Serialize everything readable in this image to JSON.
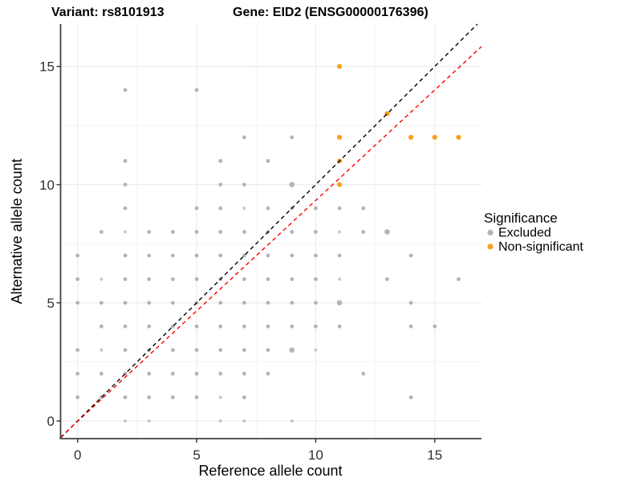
{
  "header": {
    "variant_title": "Variant: rs8101913",
    "gene_title": "Gene: EID2 (ENSG00000176396)"
  },
  "legend": {
    "title": "Significance",
    "items": [
      {
        "label": "Excluded",
        "color": "#b4b4b4"
      },
      {
        "label": "Non-significant",
        "color": "#f8a01d"
      }
    ]
  },
  "chart_data": {
    "type": "scatter",
    "title": "Variant: rs8101913   Gene: EID2 (ENSG00000176396)",
    "xlabel": "Reference allele count",
    "ylabel": "Alternative allele count",
    "x_ticks": [
      0,
      5,
      10,
      15
    ],
    "y_ticks": [
      0,
      5,
      10,
      15
    ],
    "x_minor_ticks": [
      2.5,
      7.5,
      12.5
    ],
    "y_minor_ticks": [
      2.5,
      7.5,
      12.5
    ],
    "xlim": [
      -0.71,
      16.96
    ],
    "ylim": [
      -0.75,
      16.79
    ],
    "grid": true,
    "legend_position": "right",
    "series": [
      {
        "name": "Excluded",
        "color": "#b4b4b4",
        "base_radius": 2.4,
        "points": [
          [
            2,
            0,
            1
          ],
          [
            3,
            0,
            1
          ],
          [
            6,
            0,
            1
          ],
          [
            7,
            0,
            1
          ],
          [
            9,
            0,
            1
          ],
          [
            0,
            1,
            2
          ],
          [
            1,
            1,
            2
          ],
          [
            2,
            1,
            2
          ],
          [
            3,
            1,
            2
          ],
          [
            4,
            1,
            2
          ],
          [
            5,
            1,
            2
          ],
          [
            6,
            1,
            1
          ],
          [
            7,
            1,
            2
          ],
          [
            14,
            1,
            2
          ],
          [
            0,
            2,
            2
          ],
          [
            1,
            2,
            2
          ],
          [
            2,
            2,
            2
          ],
          [
            3,
            2,
            2
          ],
          [
            4,
            2,
            2
          ],
          [
            5,
            2,
            2
          ],
          [
            6,
            2,
            2
          ],
          [
            7,
            2,
            2
          ],
          [
            8,
            2,
            2
          ],
          [
            12,
            2,
            2
          ],
          [
            0,
            3,
            2
          ],
          [
            1,
            3,
            1
          ],
          [
            2,
            3,
            2
          ],
          [
            3,
            3,
            2
          ],
          [
            4,
            3,
            2
          ],
          [
            5,
            3,
            2
          ],
          [
            6,
            3,
            2
          ],
          [
            7,
            3,
            2
          ],
          [
            8,
            3,
            2
          ],
          [
            9,
            3,
            3
          ],
          [
            10,
            3,
            1
          ],
          [
            1,
            4,
            2
          ],
          [
            2,
            4,
            2
          ],
          [
            3,
            4,
            2
          ],
          [
            4,
            4,
            2
          ],
          [
            5,
            4,
            2
          ],
          [
            6,
            4,
            2
          ],
          [
            7,
            4,
            2
          ],
          [
            8,
            4,
            2
          ],
          [
            9,
            4,
            2
          ],
          [
            10,
            4,
            2
          ],
          [
            11,
            4,
            2
          ],
          [
            14,
            4,
            2
          ],
          [
            15,
            4,
            2
          ],
          [
            0,
            5,
            2
          ],
          [
            1,
            5,
            2
          ],
          [
            2,
            5,
            2
          ],
          [
            3,
            5,
            2
          ],
          [
            4,
            5,
            2
          ],
          [
            5,
            5,
            2
          ],
          [
            6,
            5,
            2
          ],
          [
            7,
            5,
            2
          ],
          [
            8,
            5,
            2
          ],
          [
            9,
            5,
            2
          ],
          [
            10,
            5,
            2
          ],
          [
            11,
            5,
            3
          ],
          [
            14,
            5,
            2
          ],
          [
            0,
            6,
            2
          ],
          [
            1,
            6,
            1
          ],
          [
            2,
            6,
            2
          ],
          [
            3,
            6,
            2
          ],
          [
            4,
            6,
            2
          ],
          [
            5,
            6,
            2
          ],
          [
            6,
            6,
            2
          ],
          [
            7,
            6,
            2
          ],
          [
            8,
            6,
            2
          ],
          [
            9,
            6,
            2
          ],
          [
            10,
            6,
            2
          ],
          [
            11,
            6,
            1
          ],
          [
            13,
            6,
            2
          ],
          [
            16,
            6,
            2
          ],
          [
            0,
            7,
            2
          ],
          [
            2,
            7,
            2
          ],
          [
            3,
            7,
            2
          ],
          [
            4,
            7,
            2
          ],
          [
            5,
            7,
            2
          ],
          [
            6,
            7,
            2
          ],
          [
            7,
            7,
            2
          ],
          [
            8,
            7,
            2
          ],
          [
            9,
            7,
            2
          ],
          [
            10,
            7,
            2
          ],
          [
            11,
            7,
            2
          ],
          [
            14,
            7,
            2
          ],
          [
            1,
            8,
            2
          ],
          [
            2,
            8,
            1
          ],
          [
            3,
            8,
            2
          ],
          [
            4,
            8,
            2
          ],
          [
            5,
            8,
            2
          ],
          [
            6,
            8,
            2
          ],
          [
            7,
            8,
            2
          ],
          [
            8,
            8,
            2
          ],
          [
            9,
            8,
            2
          ],
          [
            10,
            8,
            2
          ],
          [
            11,
            8,
            1
          ],
          [
            12,
            8,
            2
          ],
          [
            13,
            8,
            3
          ],
          [
            2,
            9,
            2
          ],
          [
            5,
            9,
            2
          ],
          [
            6,
            9,
            2
          ],
          [
            7,
            9,
            1
          ],
          [
            8,
            9,
            2
          ],
          [
            9,
            9,
            2
          ],
          [
            10,
            9,
            2
          ],
          [
            11,
            9,
            2
          ],
          [
            12,
            9,
            2
          ],
          [
            2,
            10,
            2
          ],
          [
            6,
            10,
            2
          ],
          [
            7,
            10,
            2
          ],
          [
            9,
            10,
            3
          ],
          [
            2,
            11,
            2
          ],
          [
            6,
            11,
            2
          ],
          [
            8,
            11,
            2
          ],
          [
            7,
            12,
            2
          ],
          [
            9,
            12,
            2
          ],
          [
            2,
            14,
            2
          ],
          [
            5,
            14,
            2
          ]
        ]
      },
      {
        "name": "Non-significant",
        "color": "#f8a01d",
        "base_radius": 3.1,
        "points": [
          [
            11,
            10,
            2
          ],
          [
            11,
            11,
            2
          ],
          [
            11,
            12,
            2
          ],
          [
            11,
            15,
            2
          ],
          [
            13,
            13,
            2
          ],
          [
            14,
            12,
            2
          ],
          [
            15,
            12,
            2
          ],
          [
            16,
            12,
            2
          ]
        ]
      }
    ],
    "reference_lines": [
      {
        "name": "identity",
        "style": "dashed",
        "color": "#000000",
        "slope": 1,
        "intercept": 0
      },
      {
        "name": "fit",
        "style": "dashed",
        "color": "#ff0000",
        "slope": 0.935,
        "intercept": -0.02
      }
    ]
  }
}
